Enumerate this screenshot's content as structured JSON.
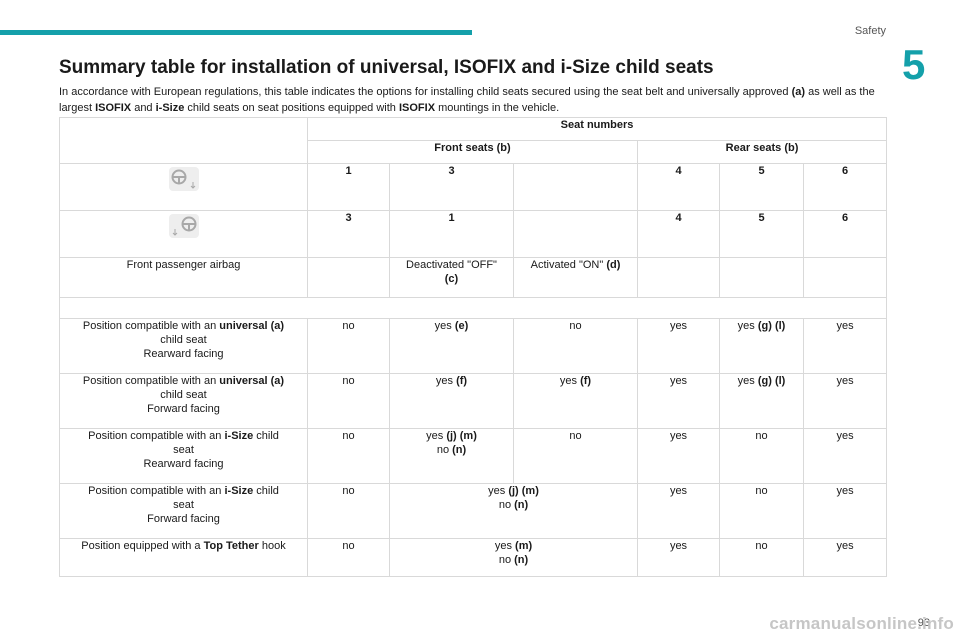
{
  "header": {
    "section": "Safety",
    "chapter": "5"
  },
  "title": "Summary table for installation of universal, ISOFIX and i-Size child seats",
  "intro": {
    "t1": "In accordance with European regulations, this table indicates the options for installing child seats secured using the seat belt and universally approved ",
    "b1": "(a)",
    "t2": " as well as the largest ",
    "b2": "ISOFIX",
    "t3": " and ",
    "b3": "i-Size",
    "t4": " child seats on seat positions equipped with ",
    "b4": "ISOFIX",
    "t5": " mountings in the vehicle."
  },
  "table": {
    "seat_numbers": "Seat numbers",
    "front_seats": "Front seats (b)",
    "rear_seats": "Rear seats (b)",
    "icons": {
      "lhd": "left-hand-drive-steering-wheel-icon",
      "rhd": "right-hand-drive-steering-wheel-icon"
    },
    "row_lhd": [
      "1",
      "3",
      "4",
      "5",
      "6"
    ],
    "row_rhd": [
      "3",
      "1",
      "4",
      "5",
      "6"
    ],
    "airbag": {
      "label": "Front passenger airbag",
      "off": "Deactivated \"OFF\"",
      "off_b": "(c)",
      "on": "Activated \"ON\" ",
      "on_b": "(d)"
    },
    "r1": {
      "label_pre": "Position compatible with an ",
      "label_b": "universal (a)",
      "label_l2": "child seat",
      "label_l3": "Rearward facing",
      "c1": "no",
      "c2": "yes ",
      "c2b": "(e)",
      "c3": "no",
      "c4": "yes",
      "c5": "yes ",
      "c5b": "(g) (l)",
      "c6": "yes"
    },
    "r2": {
      "label_pre": "Position compatible with an ",
      "label_b": "universal (a)",
      "label_l2": "child seat",
      "label_l3": "Forward facing",
      "c1": "no",
      "c2": "yes ",
      "c2b": "(f)",
      "c3": "yes ",
      "c3b": "(f)",
      "c4": "yes",
      "c5": "yes ",
      "c5b": "(g) (l)",
      "c6": "yes"
    },
    "r3": {
      "label_pre": "Position compatible with an ",
      "label_b": "i-Size",
      "label_post": " child",
      "label_l2": "seat",
      "label_l3": "Rearward facing",
      "c1": "no",
      "c2a": "yes ",
      "c2ab": "(j) (m)",
      "c2b": "no ",
      "c2bb": "(n)",
      "c3": "no",
      "c4": "yes",
      "c5": "no",
      "c6": "yes"
    },
    "r4": {
      "label_pre": "Position compatible with an ",
      "label_b": "i-Size",
      "label_post": " child",
      "label_l2": "seat",
      "label_l3": "Forward facing",
      "c1": "no",
      "c23a": "yes ",
      "c23ab": "(j) (m)",
      "c23b": "no ",
      "c23bb": "(n)",
      "c4": "yes",
      "c5": "no",
      "c6": "yes"
    },
    "r5": {
      "label_pre": "Position equipped with a ",
      "label_b": "Top Tether",
      "label_post": " hook",
      "c1": "no",
      "c23a": "yes ",
      "c23ab": "(m)",
      "c23b": "no ",
      "c23bb": "(n)",
      "c4": "yes",
      "c5": "no",
      "c6": "yes"
    }
  },
  "footer": {
    "page": "93",
    "watermark": "carmanualsonline.info"
  }
}
